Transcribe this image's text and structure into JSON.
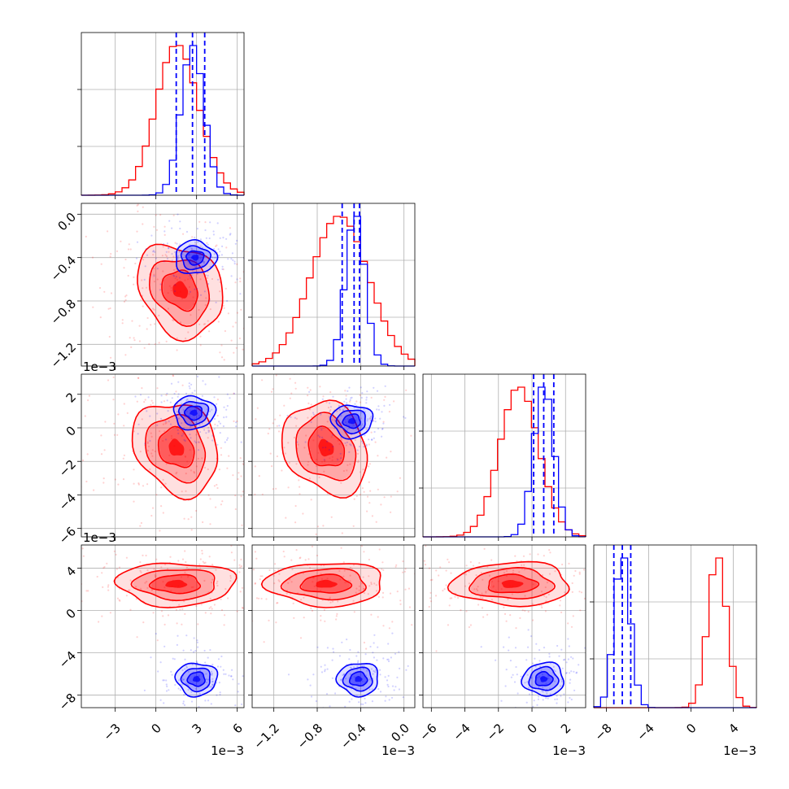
{
  "chart_data": {
    "type": "corner",
    "offset_label": "1e−3",
    "series": [
      {
        "name": "",
        "color": "#ff0000"
      },
      {
        "name": "",
        "color": "#0000ff"
      }
    ],
    "params": [
      {
        "range": [
          -5.5,
          6.5
        ],
        "ticks": [
          -3,
          0,
          3,
          6
        ],
        "tick_labels": [
          "−3",
          "0",
          "3",
          "6"
        ],
        "red": {
          "mean": 0.6,
          "sd": 1.9,
          "skew": -0.9
        },
        "blue": {
          "mean": 2.7,
          "sd": 0.85,
          "skew": 0
        },
        "quantiles": [
          1.5,
          2.7,
          3.6
        ]
      },
      {
        "range": [
          -1.4,
          0.1
        ],
        "ticks": [
          -1.2,
          -0.8,
          -0.4,
          0.0
        ],
        "tick_labels": [
          "−1.2",
          "−0.8",
          "−0.4",
          "0.0"
        ],
        "red": {
          "mean": -0.68,
          "sd": 0.28,
          "skew": -0.4
        },
        "blue": {
          "mean": -0.45,
          "sd": 0.09,
          "skew": 0
        },
        "quantiles": [
          -0.57,
          -0.46,
          -0.41
        ]
      },
      {
        "range": [
          -6.5,
          3.2
        ],
        "ticks": [
          -6,
          -4,
          -2,
          0,
          2
        ],
        "tick_labels": [
          "−6",
          "−4",
          "−2",
          "0",
          "2"
        ],
        "red": {
          "mean": -1.3,
          "sd": 1.3,
          "skew": -0.6
        },
        "blue": {
          "mean": 0.7,
          "sd": 0.6,
          "skew": 0
        },
        "quantiles": [
          0.1,
          0.7,
          1.3
        ]
      },
      {
        "range": [
          -9.2,
          6.2
        ],
        "ticks": [
          -8,
          -4,
          0,
          4
        ],
        "tick_labels": [
          "−8",
          "−4",
          "0",
          "4"
        ],
        "red": {
          "mean": 2.5,
          "sd": 0.9,
          "skew": 0
        },
        "blue": {
          "mean": -6.5,
          "sd": 0.75,
          "skew": 0
        },
        "quantiles": [
          -7.3,
          -6.5,
          -5.7
        ]
      }
    ],
    "pairs": [
      {
        "row": 1,
        "col": 0,
        "red_center": [
          1.8,
          -0.7
        ],
        "blue_center": [
          2.9,
          -0.4
        ]
      },
      {
        "row": 2,
        "col": 0,
        "red_center": [
          1.5,
          -1.2
        ],
        "blue_center": [
          2.8,
          0.9
        ]
      },
      {
        "row": 2,
        "col": 1,
        "red_center": [
          -0.72,
          -1.2
        ],
        "blue_center": [
          -0.48,
          0.4
        ]
      },
      {
        "row": 3,
        "col": 0,
        "red_center": [
          1.5,
          2.5
        ],
        "blue_center": [
          3.0,
          -6.5
        ]
      },
      {
        "row": 3,
        "col": 1,
        "red_center": [
          -0.72,
          2.5
        ],
        "blue_center": [
          -0.42,
          -6.5
        ]
      },
      {
        "row": 3,
        "col": 2,
        "red_center": [
          -1.2,
          2.5
        ],
        "blue_center": [
          0.7,
          -6.5
        ]
      }
    ],
    "grid": true
  }
}
